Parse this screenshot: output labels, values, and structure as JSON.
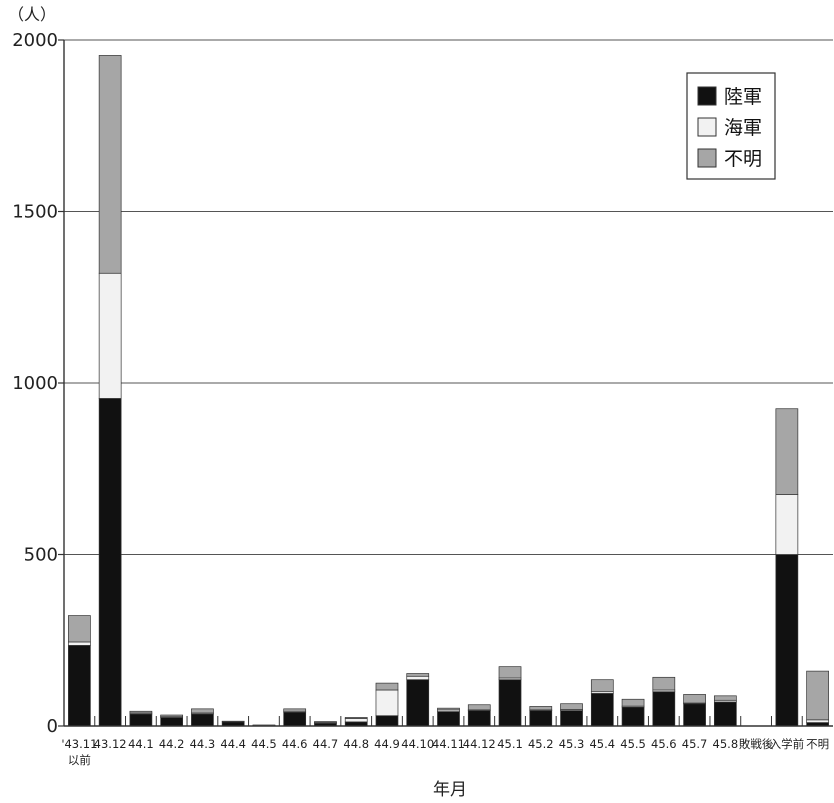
{
  "chart_data": {
    "type": "bar",
    "stacked": true,
    "y_unit": "（人）",
    "xlabel": "年月",
    "ylim": [
      0,
      2000
    ],
    "y_ticks": [
      0,
      500,
      1000,
      1500,
      2000
    ],
    "grid": true,
    "legend_position": "top-right",
    "categories": [
      [
        "'43.11",
        "以前"
      ],
      [
        "43.12"
      ],
      [
        "44.1"
      ],
      [
        "44.2"
      ],
      [
        "44.3"
      ],
      [
        "44.4"
      ],
      [
        "44.5"
      ],
      [
        "44.6"
      ],
      [
        "44.7"
      ],
      [
        "44.8"
      ],
      [
        "44.9"
      ],
      [
        "44.10"
      ],
      [
        "44.11"
      ],
      [
        "44.12"
      ],
      [
        "45.1"
      ],
      [
        "45.2"
      ],
      [
        "45.3"
      ],
      [
        "45.4"
      ],
      [
        "45.5"
      ],
      [
        "45.6"
      ],
      [
        "45.7"
      ],
      [
        "45.8"
      ],
      [
        "敗戦後"
      ],
      [
        "入学前"
      ],
      [
        "不明"
      ]
    ],
    "series": [
      {
        "name": "陸軍",
        "color": "#111111",
        "values": [
          235,
          955,
          35,
          25,
          35,
          12,
          2,
          40,
          8,
          12,
          30,
          135,
          42,
          45,
          135,
          45,
          45,
          95,
          55,
          100,
          65,
          70,
          0,
          500,
          10
        ]
      },
      {
        "name": "海軍",
        "color": "#f2f2f2",
        "values": [
          10,
          365,
          3,
          2,
          3,
          0,
          1,
          3,
          2,
          10,
          75,
          10,
          5,
          2,
          5,
          2,
          3,
          5,
          3,
          5,
          2,
          5,
          0,
          175,
          8
        ]
      },
      {
        "name": "不明",
        "color": "#a6a6a6",
        "values": [
          77,
          635,
          5,
          5,
          12,
          2,
          0,
          7,
          3,
          3,
          20,
          8,
          5,
          15,
          33,
          10,
          17,
          35,
          20,
          37,
          25,
          13,
          0,
          250,
          142
        ]
      }
    ]
  }
}
